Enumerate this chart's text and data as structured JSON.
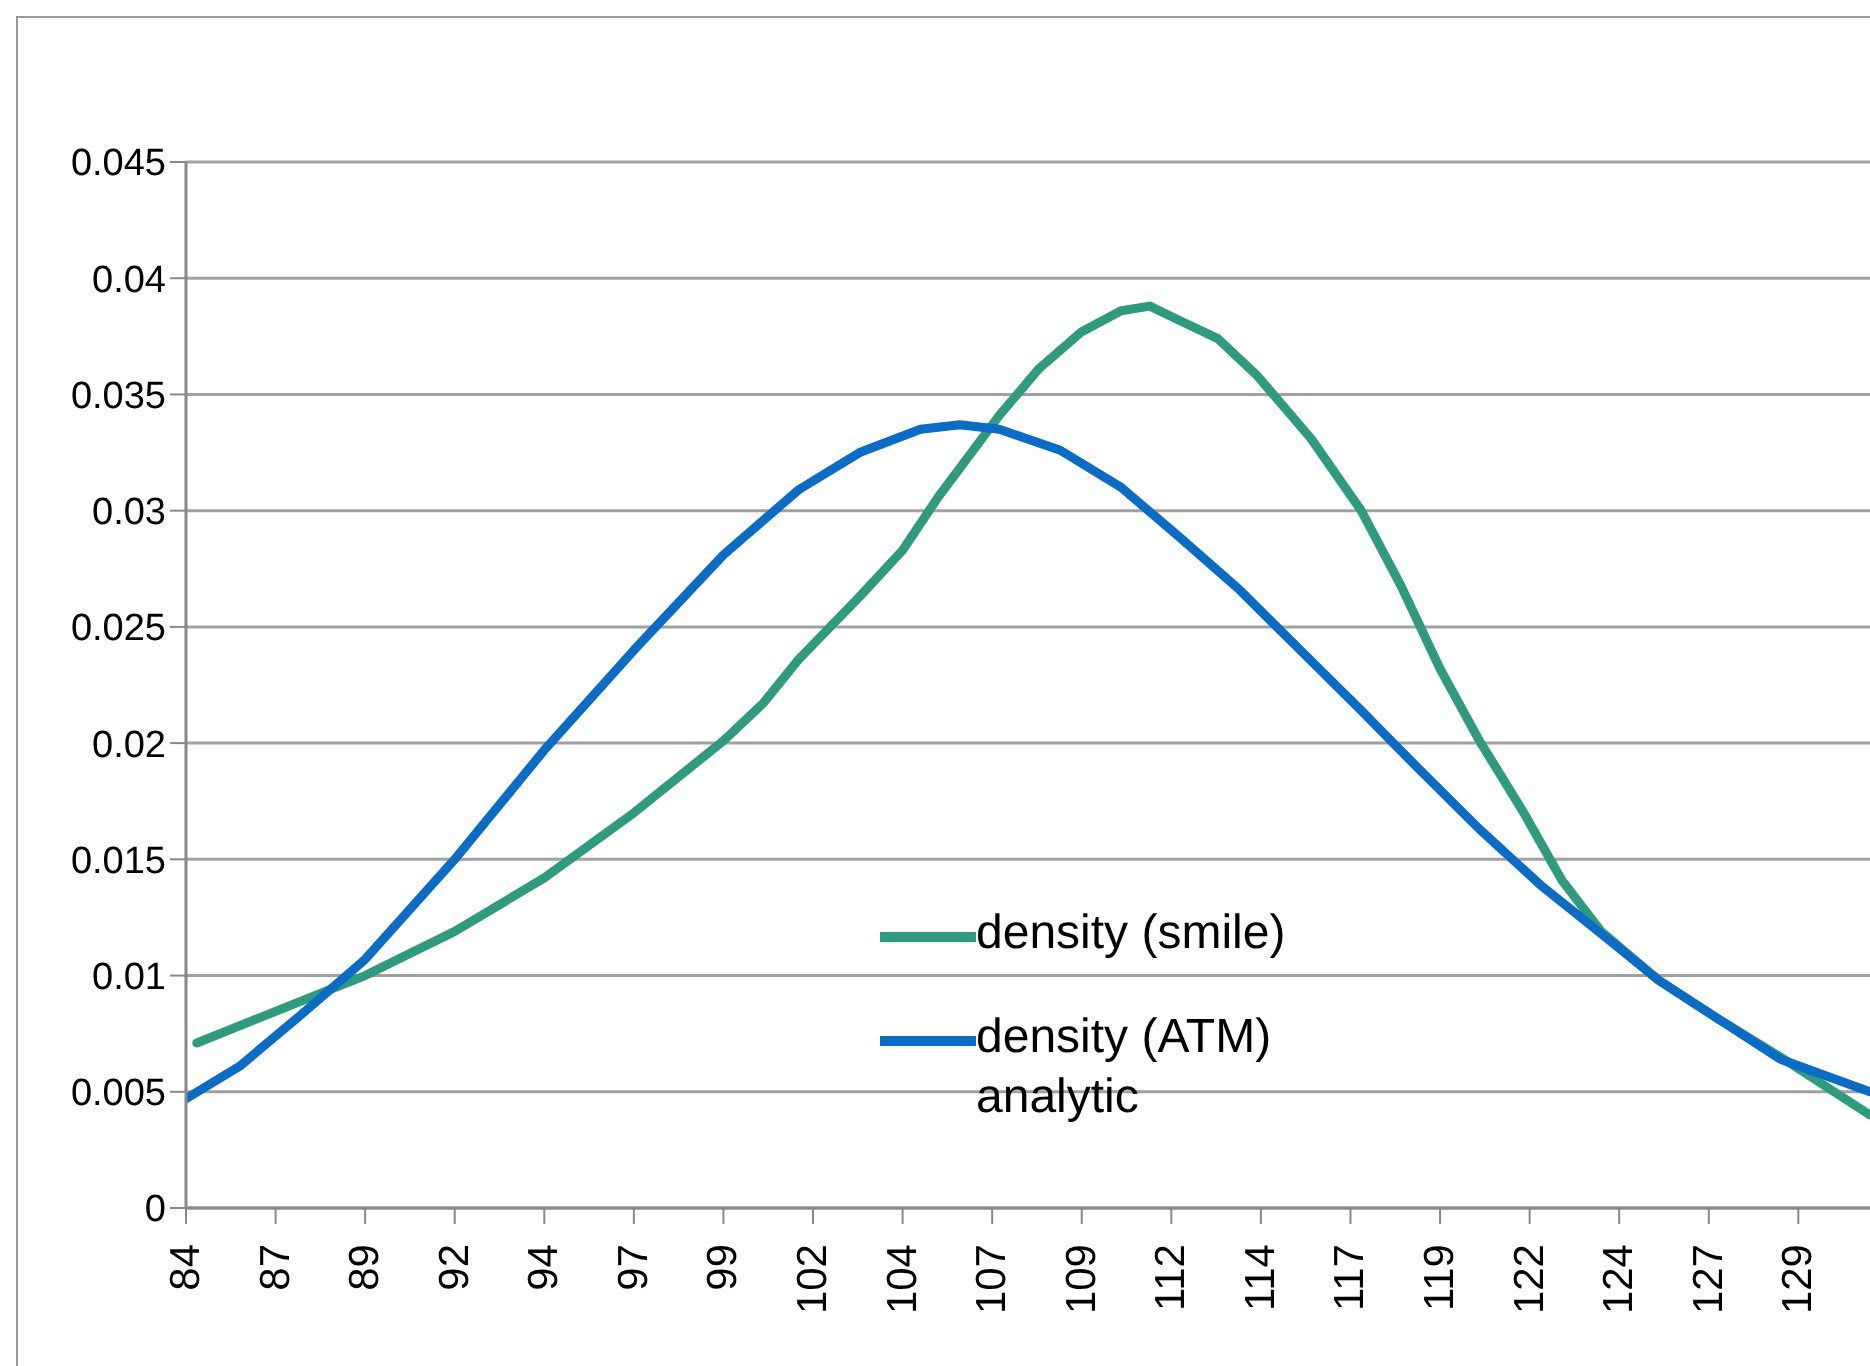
{
  "chart_data": {
    "type": "line",
    "xlim": [
      84,
      131
    ],
    "ylim": [
      0,
      0.045
    ],
    "xticks": [
      84,
      {
        "value": 86.5,
        "label": "87"
      },
      89,
      {
        "value": 91.5,
        "label": "92"
      },
      94,
      {
        "value": 96.5,
        "label": "97"
      },
      99,
      {
        "value": 101.5,
        "label": "102"
      },
      104,
      {
        "value": 106.5,
        "label": "107"
      },
      109,
      {
        "value": 111.5,
        "label": "112"
      },
      114,
      {
        "value": 116.5,
        "label": "117"
      },
      119,
      {
        "value": 121.5,
        "label": "122"
      },
      124,
      {
        "value": 126.5,
        "label": "127"
      },
      129
    ],
    "yticks": [
      0,
      0.005,
      0.01,
      0.015,
      0.02,
      0.025,
      0.03,
      0.035,
      0.04,
      0.045
    ],
    "grid": "y",
    "legend": "bottom right",
    "marker": "none",
    "line_style": "solid",
    "series": [
      {
        "name": "density (smile)",
        "color": "#2e9a7e",
        "x": [
          84.3,
          87.7,
          89,
          91.5,
          94,
          96.5,
          99,
          100.1,
          101.1,
          102.8,
          104,
          105,
          106.7,
          107.8,
          109,
          110.1,
          110.9,
          111.7,
          112.8,
          113.9,
          115.4,
          116.8,
          117.9,
          119,
          120.1,
          121.3,
          122.4,
          123.5,
          125.1,
          126.8,
          128.5,
          131
        ],
        "values": [
          0.0071,
          0.0092,
          0.01,
          0.0119,
          0.0142,
          0.017,
          0.0201,
          0.0217,
          0.0236,
          0.0263,
          0.0283,
          0.0306,
          0.0341,
          0.0361,
          0.0377,
          0.0386,
          0.0388,
          0.0382,
          0.0374,
          0.0358,
          0.0331,
          0.03,
          0.0268,
          0.0232,
          0.0201,
          0.0171,
          0.0141,
          0.0119,
          0.0098,
          0.0081,
          0.0065,
          0.004
        ]
      },
      {
        "name": "density (ATM) analytic",
        "color": "#0a6cc4",
        "x": [
          84,
          85.5,
          87.2,
          89,
          91.5,
          94,
          96.5,
          99,
          101.1,
          102.8,
          104.5,
          105.6,
          106.7,
          108.4,
          110.1,
          111.7,
          113.4,
          115.1,
          116.8,
          118.4,
          120.1,
          121.8,
          123.5,
          125.1,
          126.8,
          128.5,
          131
        ],
        "values": [
          0.0047,
          0.0061,
          0.0083,
          0.0107,
          0.015,
          0.0197,
          0.024,
          0.0281,
          0.0309,
          0.0325,
          0.0335,
          0.0337,
          0.0335,
          0.0326,
          0.031,
          0.0289,
          0.0266,
          0.024,
          0.0214,
          0.0189,
          0.0163,
          0.0139,
          0.0118,
          0.0098,
          0.0081,
          0.0064,
          0.005
        ]
      }
    ]
  }
}
